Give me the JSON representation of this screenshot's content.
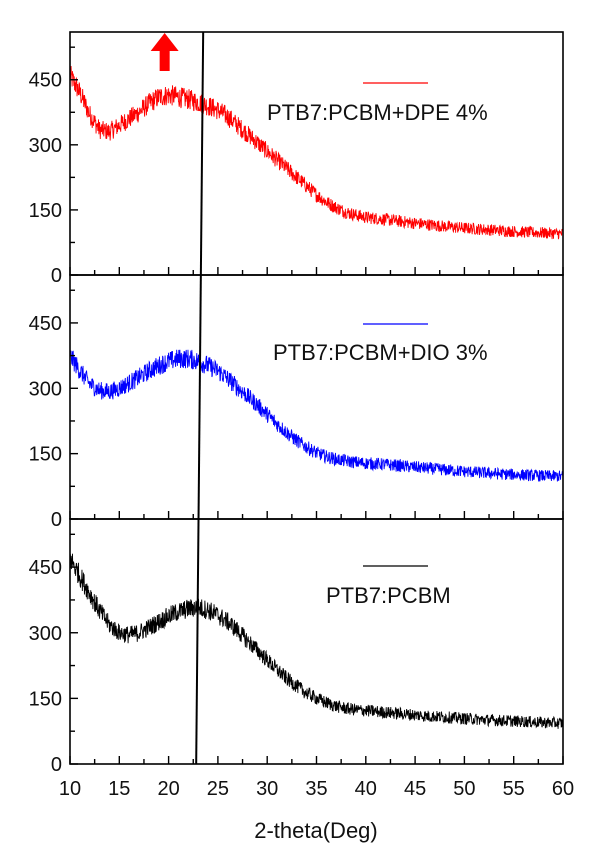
{
  "chart_data": {
    "type": "line",
    "xlabel": "2-theta(Deg)",
    "xlim": [
      10,
      60
    ],
    "x_ticks": [
      "10",
      "15",
      "20",
      "25",
      "30",
      "35",
      "40",
      "45",
      "50",
      "55",
      "60"
    ],
    "reference_line_x": 23.0,
    "arrow_marker_x": 19.6,
    "panels": [
      {
        "legend_label": "PTB7:PCBM+DPE 4%",
        "color": "#ff0000",
        "ylim": [
          0,
          560
        ],
        "y_ticks": [
          "0",
          "150",
          "300",
          "450"
        ],
        "series": {
          "x": [
            10,
            11,
            12,
            13,
            14,
            15,
            16,
            17,
            18,
            19,
            20,
            21,
            22,
            23,
            24,
            25,
            26,
            27,
            28,
            29,
            30,
            31,
            32,
            33,
            34,
            35,
            36,
            37,
            38,
            39,
            40,
            42,
            44,
            46,
            48,
            50,
            52,
            54,
            56,
            58,
            60
          ],
          "y": [
            460,
            420,
            370,
            335,
            330,
            345,
            360,
            375,
            395,
            410,
            415,
            410,
            405,
            398,
            390,
            380,
            365,
            345,
            325,
            305,
            285,
            265,
            245,
            225,
            205,
            185,
            168,
            155,
            145,
            138,
            133,
            128,
            122,
            117,
            112,
            108,
            105,
            102,
            99,
            97,
            95
          ]
        }
      },
      {
        "legend_label": "PTB7:PCBM+DIO 3%",
        "color": "#0000ff",
        "ylim": [
          0,
          560
        ],
        "y_ticks": [
          "0",
          "150",
          "300",
          "450"
        ],
        "series": {
          "x": [
            10,
            11,
            12,
            13,
            14,
            15,
            16,
            17,
            18,
            19,
            20,
            21,
            22,
            23,
            24,
            25,
            26,
            27,
            28,
            29,
            30,
            31,
            32,
            33,
            34,
            35,
            36,
            37,
            38,
            39,
            40,
            42,
            44,
            46,
            48,
            50,
            52,
            54,
            56,
            58,
            60
          ],
          "y": [
            375,
            340,
            310,
            295,
            292,
            300,
            312,
            325,
            340,
            352,
            362,
            368,
            368,
            362,
            352,
            340,
            322,
            302,
            282,
            262,
            240,
            218,
            198,
            180,
            165,
            152,
            143,
            137,
            133,
            130,
            128,
            125,
            121,
            117,
            113,
            109,
            106,
            103,
            101,
            99,
            98
          ]
        }
      },
      {
        "legend_label": "PTB7:PCBM",
        "color": "#000000",
        "ylim": [
          0,
          560
        ],
        "y_ticks": [
          "0",
          "150",
          "300",
          "450"
        ],
        "series": {
          "x": [
            10,
            11,
            12,
            13,
            14,
            15,
            16,
            17,
            18,
            19,
            20,
            21,
            22,
            23,
            24,
            25,
            26,
            27,
            28,
            29,
            30,
            31,
            32,
            33,
            34,
            35,
            36,
            37,
            38,
            39,
            40,
            42,
            44,
            46,
            48,
            50,
            52,
            54,
            56,
            58,
            60
          ],
          "y": [
            470,
            430,
            390,
            350,
            318,
            300,
            295,
            300,
            312,
            325,
            338,
            348,
            355,
            358,
            352,
            340,
            325,
            305,
            282,
            260,
            238,
            215,
            195,
            178,
            162,
            150,
            140,
            132,
            127,
            124,
            122,
            118,
            114,
            110,
            107,
            104,
            101,
            99,
            97,
            95,
            93
          ]
        }
      }
    ]
  }
}
